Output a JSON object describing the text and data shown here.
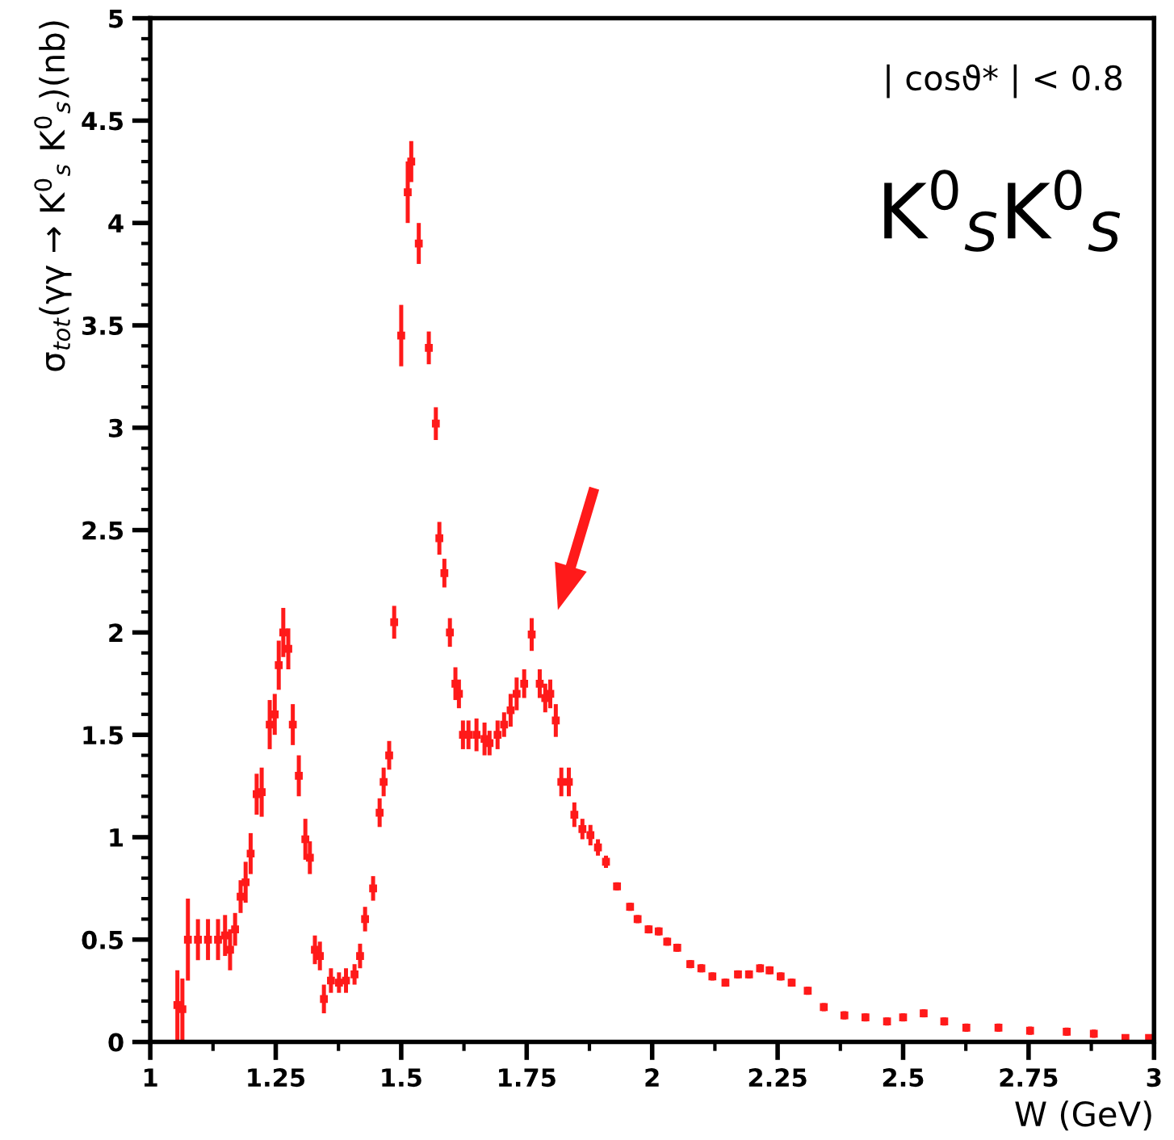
{
  "chart_data": {
    "type": "scatter",
    "xlabel": "W (GeV)",
    "ylabel": "σ$_{tot}$(γγ → K$^{0}$$_{s}$ K$^{0}$$_{s}$)(nb)",
    "annotations": [
      "| cosϑ* | < 0.8",
      "K$^{0}$$_{S}$K$^{0}$$_{S}$"
    ],
    "xlim": [
      1,
      3
    ],
    "ylim": [
      0,
      5
    ],
    "xticks": [
      1,
      1.25,
      1.5,
      1.75,
      2,
      2.25,
      2.5,
      2.75,
      3
    ],
    "yticks": [
      0,
      0.5,
      1,
      1.5,
      2,
      2.5,
      3,
      3.5,
      4,
      4.5,
      5
    ],
    "grid": false,
    "legend": false,
    "marker": "square",
    "series": [
      {
        "color": "#ff1a1a",
        "x": [
          1.054,
          1.064,
          1.075,
          1.095,
          1.115,
          1.135,
          1.149,
          1.159,
          1.169,
          1.18,
          1.19,
          1.2,
          1.212,
          1.222,
          1.238,
          1.248,
          1.256,
          1.265,
          1.275,
          1.284,
          1.296,
          1.309,
          1.318,
          1.328,
          1.338,
          1.346,
          1.36,
          1.376,
          1.39,
          1.407,
          1.418,
          1.428,
          1.444,
          1.457,
          1.465,
          1.476,
          1.486,
          1.5,
          1.513,
          1.52,
          1.535,
          1.555,
          1.569,
          1.576,
          1.586,
          1.597,
          1.608,
          1.615,
          1.623,
          1.634,
          1.65,
          1.666,
          1.676,
          1.692,
          1.705,
          1.718,
          1.73,
          1.745,
          1.76,
          1.776,
          1.787,
          1.797,
          1.808,
          1.819,
          1.834,
          1.845,
          1.861,
          1.877,
          1.892,
          1.908,
          1.93,
          1.956,
          1.971,
          1.993,
          2.013,
          2.03,
          2.05,
          2.076,
          2.098,
          2.12,
          2.146,
          2.171,
          2.193,
          2.215,
          2.234,
          2.256,
          2.278,
          2.31,
          2.342,
          2.383,
          2.425,
          2.468,
          2.5,
          2.541,
          2.582,
          2.626,
          2.69,
          2.753,
          2.826,
          2.88,
          2.943,
          2.99
        ],
        "values": [
          0.18,
          0.16,
          0.5,
          0.5,
          0.5,
          0.5,
          0.52,
          0.45,
          0.55,
          0.71,
          0.78,
          0.92,
          1.21,
          1.22,
          1.55,
          1.6,
          1.84,
          2.0,
          1.92,
          1.55,
          1.3,
          0.99,
          0.9,
          0.45,
          0.42,
          0.21,
          0.3,
          0.29,
          0.3,
          0.33,
          0.42,
          0.6,
          0.75,
          1.12,
          1.27,
          1.4,
          2.05,
          3.45,
          4.15,
          4.3,
          3.9,
          3.39,
          3.02,
          2.46,
          2.29,
          2.0,
          1.75,
          1.7,
          1.5,
          1.5,
          1.5,
          1.48,
          1.46,
          1.5,
          1.55,
          1.62,
          1.7,
          1.75,
          1.99,
          1.75,
          1.68,
          1.7,
          1.57,
          1.27,
          1.27,
          1.11,
          1.04,
          1.01,
          0.95,
          0.88,
          0.76,
          0.66,
          0.6,
          0.55,
          0.54,
          0.49,
          0.46,
          0.38,
          0.36,
          0.32,
          0.29,
          0.33,
          0.33,
          0.36,
          0.35,
          0.32,
          0.29,
          0.25,
          0.17,
          0.13,
          0.12,
          0.1,
          0.12,
          0.14,
          0.1,
          0.07,
          0.07,
          0.055,
          0.05,
          0.04,
          0.02,
          0.02
        ],
        "errors": [
          0.17,
          0.15,
          0.2,
          0.1,
          0.1,
          0.1,
          0.1,
          0.1,
          0.08,
          0.08,
          0.1,
          0.1,
          0.1,
          0.12,
          0.12,
          0.1,
          0.12,
          0.12,
          0.1,
          0.1,
          0.1,
          0.1,
          0.08,
          0.07,
          0.07,
          0.07,
          0.06,
          0.05,
          0.06,
          0.05,
          0.06,
          0.06,
          0.06,
          0.07,
          0.07,
          0.07,
          0.08,
          0.15,
          0.15,
          0.1,
          0.1,
          0.08,
          0.08,
          0.08,
          0.07,
          0.07,
          0.08,
          0.07,
          0.07,
          0.07,
          0.08,
          0.08,
          0.06,
          0.07,
          0.06,
          0.08,
          0.08,
          0.07,
          0.08,
          0.07,
          0.07,
          0.07,
          0.08,
          0.07,
          0.07,
          0.06,
          0.05,
          0.05,
          0.04,
          0.03,
          0.02,
          0.02,
          0.02,
          0.02,
          0.02,
          0.02,
          0.02,
          0.02,
          0.02,
          0.02,
          0.02,
          0.02,
          0.02,
          0.02,
          0.02,
          0.02,
          0.02,
          0.02,
          0.02,
          0.02,
          0.02,
          0.02,
          0.02,
          0.02,
          0.02,
          0.02,
          0.02,
          0.02,
          0.02,
          0.02,
          null,
          null
        ]
      }
    ]
  }
}
